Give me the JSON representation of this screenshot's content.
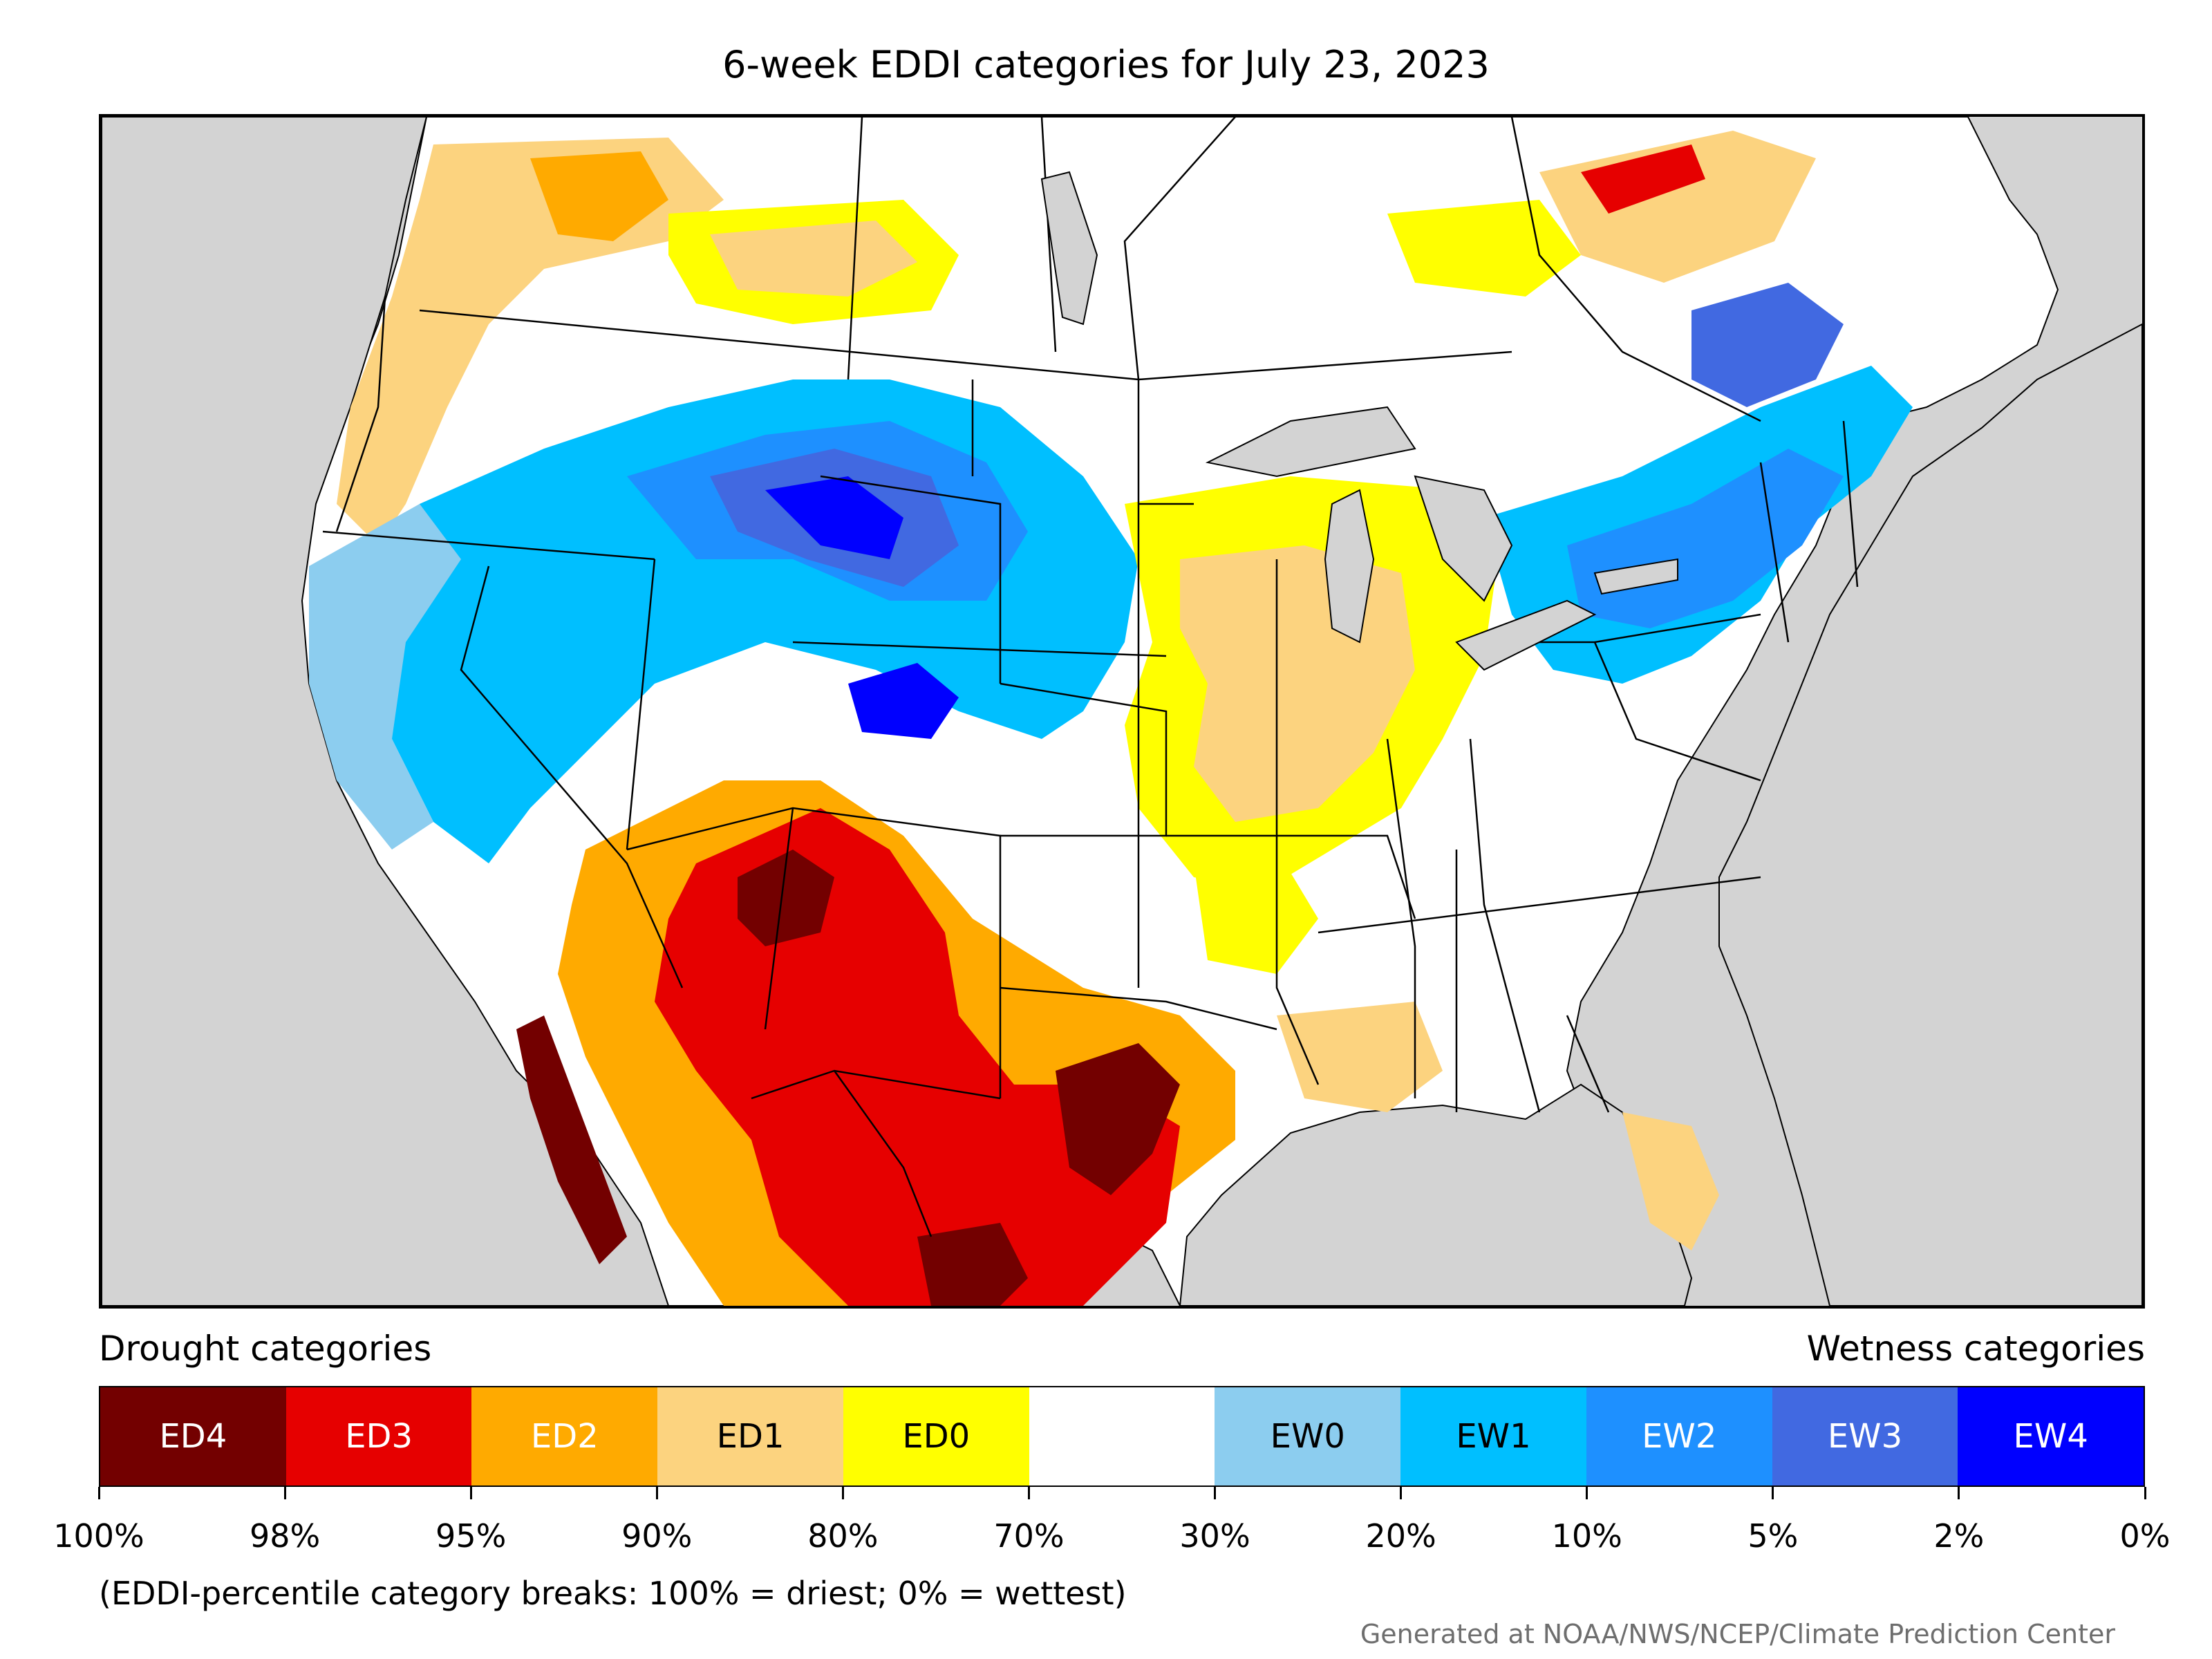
{
  "title": "6-week EDDI categories for July 23, 2023",
  "legend": {
    "drought_heading": "Drought categories",
    "wetness_heading": "Wetness categories",
    "categories": [
      {
        "label": "ED4",
        "color": "#730000",
        "text_color": "#ffffff"
      },
      {
        "label": "ED3",
        "color": "#e60000",
        "text_color": "#ffffff"
      },
      {
        "label": "ED2",
        "color": "#ffaa00",
        "text_color": "#ffffff"
      },
      {
        "label": "ED1",
        "color": "#fcd37f",
        "text_color": "#000000"
      },
      {
        "label": "ED0",
        "color": "#ffff00",
        "text_color": "#000000"
      },
      {
        "label": "",
        "color": "#ffffff",
        "text_color": "#000000"
      },
      {
        "label": "EW0",
        "color": "#8ccdef",
        "text_color": "#000000"
      },
      {
        "label": "EW1",
        "color": "#00bfff",
        "text_color": "#000000"
      },
      {
        "label": "EW2",
        "color": "#1e90ff",
        "text_color": "#ffffff"
      },
      {
        "label": "EW3",
        "color": "#4169e1",
        "text_color": "#ffffff"
      },
      {
        "label": "EW4",
        "color": "#0000ff",
        "text_color": "#ffffff"
      }
    ],
    "tick_labels": [
      "100%",
      "98%",
      "95%",
      "90%",
      "80%",
      "70%",
      "30%",
      "20%",
      "10%",
      "5%",
      "2%",
      "0%"
    ]
  },
  "note": "(EDDI-percentile category breaks: 100% = driest; 0% = wettest)",
  "credit": "Generated at NOAA/NWS/NCEP/Climate Prediction Center",
  "map": {
    "ocean_color": "#d3d3d3",
    "land_color": "#ffffff",
    "region_categories": {
      "southwest_core": "ED4",
      "southwest": "ED3",
      "texas_core": "ED4",
      "texas": "ED3",
      "southern_plains": "ED2",
      "midwest": "ED1",
      "northern_rockies": "EW2",
      "wyoming_core": "EW4",
      "northeast": "EW2",
      "pacific_northwest": "ED1",
      "florida": "ED1",
      "quebec": "ED1"
    }
  }
}
